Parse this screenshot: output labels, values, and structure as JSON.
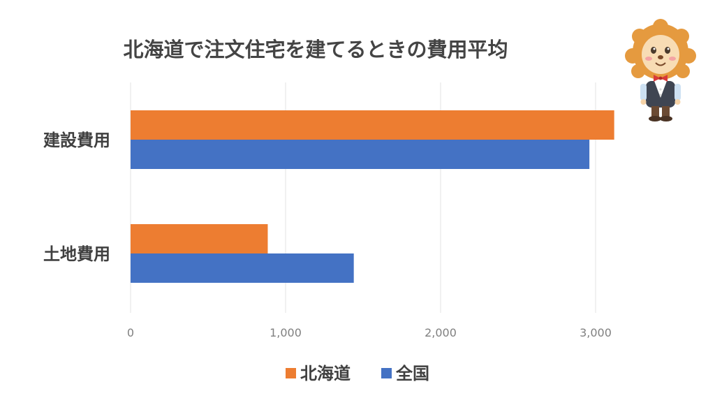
{
  "chart_data": {
    "type": "bar",
    "orientation": "horizontal",
    "title": "北海道で注文住宅を建てるときの費用平均",
    "categories": [
      "建設費用",
      "土地費用"
    ],
    "series": [
      {
        "name": "北海道",
        "color": "#ED7D31",
        "values": [
          3120,
          885
        ]
      },
      {
        "name": "全国",
        "color": "#4472C4",
        "values": [
          2960,
          1440
        ]
      }
    ],
    "xlim": [
      0,
      3500
    ],
    "xticks": [
      0,
      1000,
      2000,
      3000
    ],
    "xtick_labels": [
      "0",
      "1,000",
      "2,000",
      "3,000"
    ],
    "grid": true,
    "legend_position": "bottom"
  },
  "mascot": {
    "icon": "lion-mascot-icon"
  }
}
